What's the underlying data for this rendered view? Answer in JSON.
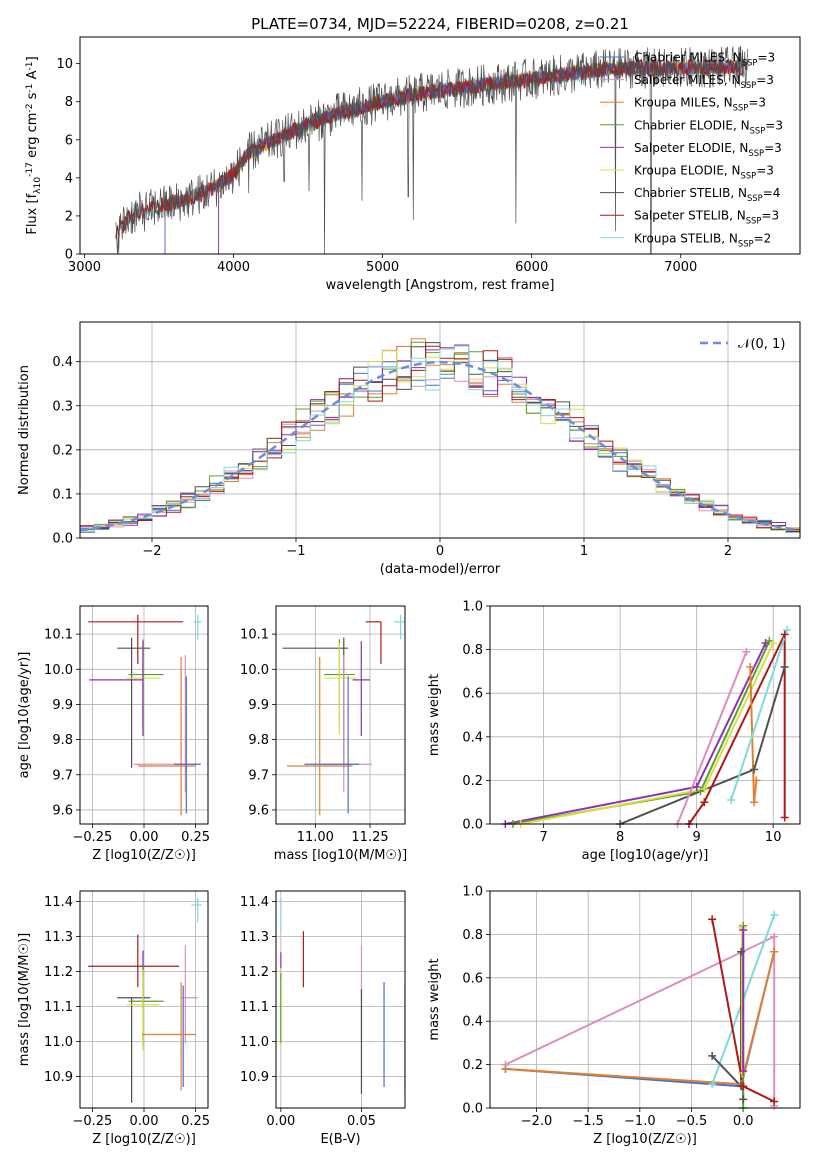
{
  "figure": {
    "title": "PLATE=0734, MJD=52224, FIBERID=0208, z=0.21"
  },
  "colors": {
    "Chabrier MILES": "#4a6fd0",
    "Salpeter MILES": "#e08cc0",
    "Kroupa MILES": "#e08030",
    "Chabrier ELODIE": "#5aa030",
    "Salpeter ELODIE": "#9030b0",
    "Kroupa ELODIE": "#d8e040",
    "Chabrier STELIB": "#505050",
    "Salpeter STELIB": "#b01818",
    "Kroupa STELIB": "#80d8e0",
    "gaussian": "#6a8fd8",
    "grid": "#b0b0b0"
  },
  "chart_data": [
    {
      "id": "spectrum",
      "type": "line",
      "xlabel": "wavelength [Angstrom, rest frame]",
      "ylabel": "Flux [f_λ10^-17 erg cm^-2 s^-1 A^-1]",
      "xlim": [
        2970,
        7800
      ],
      "ylim": [
        0,
        11.4
      ],
      "xticks": [
        3000,
        4000,
        5000,
        6000,
        7000
      ],
      "yticks": [
        0,
        2,
        4,
        6,
        8,
        10
      ],
      "grid": false,
      "legend_position": "right",
      "legend": [
        {
          "name": "Chabrier MILES, N_SSP=3",
          "key": "Chabrier MILES"
        },
        {
          "name": "Salpeter MILES, N_SSP=3",
          "key": "Salpeter MILES"
        },
        {
          "name": "Kroupa MILES, N_SSP=3",
          "key": "Kroupa MILES"
        },
        {
          "name": "Chabrier ELODIE, N_SSP=3",
          "key": "Chabrier ELODIE"
        },
        {
          "name": "Salpeter ELODIE, N_SSP=3",
          "key": "Salpeter ELODIE"
        },
        {
          "name": "Kroupa ELODIE, N_SSP=3",
          "key": "Kroupa ELODIE"
        },
        {
          "name": "Chabrier STELIB, N_SSP=4",
          "key": "Chabrier STELIB"
        },
        {
          "name": "Salpeter STELIB, N_SSP=3",
          "key": "Salpeter STELIB"
        },
        {
          "name": "Kroupa STELIB, N_SSP=2",
          "key": "Kroupa STELIB"
        }
      ],
      "continuum": [
        [
          3210,
          0.9
        ],
        [
          3300,
          2.0
        ],
        [
          3500,
          2.5
        ],
        [
          3700,
          2.9
        ],
        [
          3900,
          3.6
        ],
        [
          4000,
          4.2
        ],
        [
          4100,
          5.3
        ],
        [
          4300,
          6.1
        ],
        [
          4500,
          6.8
        ],
        [
          4700,
          7.4
        ],
        [
          4900,
          7.8
        ],
        [
          5100,
          8.2
        ],
        [
          5300,
          8.5
        ],
        [
          5500,
          8.7
        ],
        [
          5700,
          8.9
        ],
        [
          5900,
          9.1
        ],
        [
          6100,
          9.3
        ],
        [
          6300,
          9.5
        ],
        [
          6500,
          9.7
        ],
        [
          6700,
          9.8
        ],
        [
          6900,
          9.7
        ],
        [
          7100,
          9.8
        ],
        [
          7300,
          9.8
        ],
        [
          7450,
          9.8
        ]
      ],
      "absorption_dips": [
        [
          3430,
          1.8
        ],
        [
          3600,
          2.0
        ],
        [
          3800,
          2.4
        ],
        [
          3934,
          3.2
        ],
        [
          3968,
          3.4
        ],
        [
          4101,
          3.2
        ],
        [
          4340,
          3.8
        ],
        [
          4505,
          3.3
        ],
        [
          4610,
          0.0
        ],
        [
          4861,
          2.8
        ],
        [
          5172,
          3.0
        ],
        [
          5205,
          1.8
        ],
        [
          5893,
          1.6
        ],
        [
          6563,
          1.2
        ],
        [
          6800,
          0.0
        ]
      ]
    },
    {
      "id": "residuals",
      "type": "line",
      "xlabel": "(data-model)/error",
      "ylabel": "Normed distribution",
      "xlim": [
        -2.5,
        2.5
      ],
      "ylim": [
        0,
        0.49
      ],
      "xticks": [
        -2,
        -1,
        0,
        1,
        2
      ],
      "yticks": [
        0.0,
        0.1,
        0.2,
        0.3,
        0.4
      ],
      "grid": true,
      "legend_position": "top-right",
      "legend": [
        {
          "name": "𝒩(0, 1)",
          "key": "gaussian"
        }
      ],
      "gaussian": {
        "mu": 0,
        "sigma": 1
      },
      "bin_width": 0.1
    },
    {
      "id": "age_vs_Z",
      "type": "scatter",
      "xlabel": "Z [log10(Z/Z☉)]",
      "ylabel": "age [log10(age/yr)]",
      "xlim": [
        -0.31,
        0.31
      ],
      "ylim": [
        9.56,
        10.18
      ],
      "xticks": [
        -0.25,
        0.0,
        0.25
      ],
      "yticks": [
        9.6,
        9.7,
        9.8,
        9.9,
        10.0,
        10.1
      ],
      "grid": true,
      "points": [
        {
          "key": "Salpeter STELIB",
          "x": -0.03,
          "xerr": [
            0.24,
            0.22
          ],
          "y": 10.135,
          "yerr": [
            0.12,
            0.02
          ]
        },
        {
          "key": "Kroupa STELIB",
          "x": 0.26,
          "xerr": [
            0.02,
            0.02
          ],
          "y": 10.135,
          "yerr": [
            0.05,
            0.02
          ]
        },
        {
          "key": "Chabrier STELIB",
          "x": -0.06,
          "xerr": [
            0.07,
            0.09
          ],
          "y": 10.06,
          "yerr": [
            0.34,
            0.03
          ]
        },
        {
          "key": "Chabrier ELODIE",
          "x": -0.005,
          "xerr": [
            0.07,
            0.1
          ],
          "y": 9.985,
          "yerr": [
            0.15,
            0.1
          ]
        },
        {
          "key": "Kroupa ELODIE",
          "x": -0.005,
          "xerr": [
            0.08,
            0.08
          ],
          "y": 9.975,
          "yerr": [
            0.16,
            0.1
          ]
        },
        {
          "key": "Salpeter ELODIE",
          "x": -0.005,
          "xerr": [
            0.26,
            0.0
          ],
          "y": 9.97,
          "yerr": [
            0.16,
            0.11
          ]
        },
        {
          "key": "Salpeter MILES",
          "x": 0.2,
          "xerr": [
            0.25,
            0.06
          ],
          "y": 9.73,
          "yerr": [
            0.08,
            0.31
          ]
        },
        {
          "key": "Kroupa MILES",
          "x": 0.18,
          "xerr": [
            0.21,
            0.07
          ],
          "y": 9.725,
          "yerr": [
            0.14,
            0.31
          ]
        },
        {
          "key": "Chabrier MILES",
          "x": 0.205,
          "xerr": [
            0.06,
            0.07
          ],
          "y": 9.73,
          "yerr": [
            0.14,
            0.25
          ]
        }
      ]
    },
    {
      "id": "age_vs_mass",
      "type": "scatter",
      "xlabel": "mass [log10(M/M☉)]",
      "ylabel": "",
      "xlim": [
        10.82,
        11.41
      ],
      "ylim": [
        9.56,
        10.18
      ],
      "xticks": [
        11.0,
        11.25
      ],
      "yticks": [
        9.6,
        9.7,
        9.8,
        9.9,
        10.0,
        10.1
      ],
      "grid": true,
      "points": [
        {
          "key": "Salpeter STELIB",
          "x": 11.3,
          "xerr": [
            0.07,
            0.0
          ],
          "y": 10.135,
          "yerr": [
            0.12,
            0.0
          ]
        },
        {
          "key": "Kroupa STELIB",
          "x": 11.39,
          "xerr": [
            0.03,
            0.02
          ],
          "y": 10.135,
          "yerr": [
            0.05,
            0.02
          ]
        },
        {
          "key": "Chabrier STELIB",
          "x": 11.13,
          "xerr": [
            0.28,
            0.02
          ],
          "y": 10.06,
          "yerr": [
            0.34,
            0.03
          ]
        },
        {
          "key": "Chabrier ELODIE",
          "x": 11.11,
          "xerr": [
            0.07,
            0.07
          ],
          "y": 9.985,
          "yerr": [
            0.15,
            0.1
          ]
        },
        {
          "key": "Kroupa ELODIE",
          "x": 11.11,
          "xerr": [
            0.07,
            0.08
          ],
          "y": 9.975,
          "yerr": [
            0.16,
            0.1
          ]
        },
        {
          "key": "Salpeter ELODIE",
          "x": 11.21,
          "xerr": [
            0.04,
            0.04
          ],
          "y": 9.97,
          "yerr": [
            0.16,
            0.11
          ]
        },
        {
          "key": "Salpeter MILES",
          "x": 11.13,
          "xerr": [
            0.09,
            0.13
          ],
          "y": 9.73,
          "yerr": [
            0.08,
            0.31
          ]
        },
        {
          "key": "Kroupa MILES",
          "x": 11.02,
          "xerr": [
            0.15,
            0.15
          ],
          "y": 9.725,
          "yerr": [
            0.14,
            0.31
          ]
        },
        {
          "key": "Chabrier MILES",
          "x": 11.15,
          "xerr": [
            0.2,
            0.05
          ],
          "y": 9.73,
          "yerr": [
            0.14,
            0.25
          ]
        }
      ]
    },
    {
      "id": "weight_vs_age",
      "type": "line",
      "xlabel": "age [log10(age/yr)]",
      "ylabel": "mass weight",
      "xlim": [
        6.3,
        10.35
      ],
      "ylim": [
        0,
        1
      ],
      "xticks": [
        7,
        8,
        9,
        10
      ],
      "yticks": [
        0.0,
        0.2,
        0.4,
        0.6,
        0.8,
        1.0
      ],
      "grid": true,
      "series": [
        {
          "key": "Salpeter ELODIE",
          "x": [
            6.5,
            9.0,
            9.9
          ],
          "y": [
            0.0,
            0.17,
            0.83
          ]
        },
        {
          "key": "Chabrier ELODIE",
          "x": [
            6.6,
            9.05,
            9.95
          ],
          "y": [
            0.0,
            0.15,
            0.84
          ]
        },
        {
          "key": "Kroupa ELODIE",
          "x": [
            6.7,
            9.1,
            10.0
          ],
          "y": [
            0.0,
            0.16,
            0.83
          ]
        },
        {
          "key": "Chabrier STELIB",
          "x": [
            8.0,
            9.75,
            10.15
          ],
          "y": [
            0.0,
            0.25,
            0.72
          ]
        },
        {
          "key": "Salpeter STELIB",
          "x": [
            8.9,
            9.1,
            10.15,
            10.15
          ],
          "y": [
            0.0,
            0.1,
            0.87,
            0.03
          ]
        },
        {
          "key": "Salpeter MILES",
          "x": [
            8.75,
            9.65
          ],
          "y": [
            0.0,
            0.79
          ]
        },
        {
          "key": "Kroupa MILES",
          "x": [
            9.7,
            9.75,
            9.78
          ],
          "y": [
            0.72,
            0.1,
            0.2
          ]
        },
        {
          "key": "Kroupa STELIB",
          "x": [
            9.45,
            10.18
          ],
          "y": [
            0.11,
            0.89
          ]
        }
      ]
    },
    {
      "id": "mass_vs_Z",
      "type": "scatter",
      "xlabel": "Z [log10(Z/Z☉)]",
      "ylabel": "mass [log10(M/M☉)]",
      "xlim": [
        -0.31,
        0.31
      ],
      "ylim": [
        10.81,
        11.43
      ],
      "xticks": [
        -0.25,
        0.0,
        0.25
      ],
      "yticks": [
        10.9,
        11.0,
        11.1,
        11.2,
        11.3,
        11.4
      ],
      "grid": true,
      "points": [
        {
          "key": "Kroupa STELIB",
          "x": 0.26,
          "xerr": [
            0.03,
            0.02
          ],
          "y": 11.39,
          "yerr": [
            0.05,
            0.02
          ]
        },
        {
          "key": "Salpeter STELIB",
          "x": -0.03,
          "xerr": [
            0.24,
            0.2
          ],
          "y": 11.215,
          "yerr": [
            0.06,
            0.09
          ]
        },
        {
          "key": "Salpeter ELODIE",
          "x": -0.005,
          "xerr": [
            0.0,
            0.0
          ],
          "y": 11.22,
          "yerr": [
            0.03,
            0.04
          ]
        },
        {
          "key": "Salpeter MILES",
          "x": 0.2,
          "xerr": [
            0.02,
            0.06
          ],
          "y": 11.125,
          "yerr": [
            0.13,
            0.15
          ]
        },
        {
          "key": "Chabrier STELIB",
          "x": -0.06,
          "xerr": [
            0.07,
            0.09
          ],
          "y": 11.125,
          "yerr": [
            0.3,
            0.0
          ]
        },
        {
          "key": "Chabrier ELODIE",
          "x": -0.005,
          "xerr": [
            0.07,
            0.1
          ],
          "y": 11.115,
          "yerr": [
            0.13,
            0.1
          ]
        },
        {
          "key": "Kroupa ELODIE",
          "x": -0.005,
          "xerr": [
            0.08,
            0.08
          ],
          "y": 11.105,
          "yerr": [
            0.13,
            0.1
          ]
        },
        {
          "key": "Chabrier MILES",
          "x": 0.19,
          "xerr": [
            0.0,
            0.0
          ],
          "y": 11.1,
          "yerr": [
            0.23,
            0.06
          ]
        },
        {
          "key": "Kroupa MILES",
          "x": 0.18,
          "xerr": [
            0.19,
            0.07
          ],
          "y": 11.02,
          "yerr": [
            0.16,
            0.15
          ]
        }
      ]
    },
    {
      "id": "mass_vs_EBV",
      "type": "scatter",
      "xlabel": "E(B-V)",
      "ylabel": "",
      "xlim": [
        -0.003,
        0.077
      ],
      "ylim": [
        10.81,
        11.43
      ],
      "xticks": [
        0.0,
        0.05
      ],
      "yticks": [
        10.9,
        11.0,
        11.1,
        11.2,
        11.3,
        11.4
      ],
      "grid": true,
      "points": [
        {
          "key": "Kroupa STELIB",
          "x": 0.0,
          "yerr": [
            0.08,
            0.02
          ],
          "y": 11.39
        },
        {
          "key": "Salpeter ELODIE",
          "x": 0.0,
          "yerr": [
            0.04,
            0.04
          ],
          "y": 11.215
        },
        {
          "key": "Kroupa ELODIE",
          "x": 0.0,
          "yerr": [
            0.13,
            0.1
          ],
          "y": 11.11
        },
        {
          "key": "Chabrier ELODIE",
          "x": 0.0,
          "yerr": [
            0.12,
            0.08
          ],
          "y": 11.115
        },
        {
          "key": "Salpeter STELIB",
          "x": 0.014,
          "yerr": [
            0.06,
            0.1
          ],
          "y": 11.215
        },
        {
          "key": "Salpeter MILES",
          "x": 0.05,
          "yerr": [
            0.13,
            0.15
          ],
          "y": 11.125
        },
        {
          "key": "Chabrier STELIB",
          "x": 0.05,
          "yerr": [
            0.3,
            0.0
          ],
          "y": 11.15
        },
        {
          "key": "Chabrier MILES",
          "x": 0.064,
          "yerr": [
            0.23,
            0.07
          ],
          "y": 11.1
        },
        {
          "key": "Kroupa MILES",
          "x": 0.077,
          "yerr": [
            0.16,
            0.15
          ],
          "y": 11.02
        }
      ]
    },
    {
      "id": "weight_vs_Z",
      "type": "line",
      "xlabel": "Z [log10(Z/Z☉)]",
      "ylabel": "mass weight",
      "xlim": [
        -2.45,
        0.55
      ],
      "ylim": [
        0,
        1
      ],
      "xticks": [
        -2.0,
        -1.5,
        -1.0,
        -0.5,
        0.0
      ],
      "yticks": [
        0.0,
        0.2,
        0.4,
        0.6,
        0.8,
        1.0
      ],
      "grid": true,
      "series": [
        {
          "key": "Salpeter MILES",
          "x": [
            -2.3,
            0.3,
            0.3
          ],
          "y": [
            0.2,
            0.79,
            0.01
          ]
        },
        {
          "key": "Chabrier MILES",
          "x": [
            -2.3,
            -0.02,
            0.3
          ],
          "y": [
            0.18,
            0.1,
            0.72
          ]
        },
        {
          "key": "Kroupa MILES",
          "x": [
            -2.3,
            -0.02,
            0.3
          ],
          "y": [
            0.18,
            0.11,
            0.72
          ]
        },
        {
          "key": "Kroupa STELIB",
          "x": [
            -0.3,
            0.3
          ],
          "y": [
            0.11,
            0.89
          ]
        },
        {
          "key": "Chabrier STELIB",
          "x": [
            -0.3,
            -0.02,
            -0.02,
            0.0
          ],
          "y": [
            0.24,
            0.1,
            0.72,
            0.04
          ]
        },
        {
          "key": "Salpeter STELIB",
          "x": [
            -0.3,
            0.0,
            0.3
          ],
          "y": [
            0.87,
            0.1,
            0.03
          ]
        },
        {
          "key": "Chabrier ELODIE",
          "x": [
            0.0,
            0.0
          ],
          "y": [
            0.84,
            0.0
          ]
        },
        {
          "key": "Kroupa ELODIE",
          "x": [
            -0.01,
            -0.01
          ],
          "y": [
            0.83,
            0.16
          ]
        },
        {
          "key": "Salpeter ELODIE",
          "x": [
            0.0,
            0.0
          ],
          "y": [
            0.82,
            0.17
          ]
        }
      ]
    }
  ]
}
